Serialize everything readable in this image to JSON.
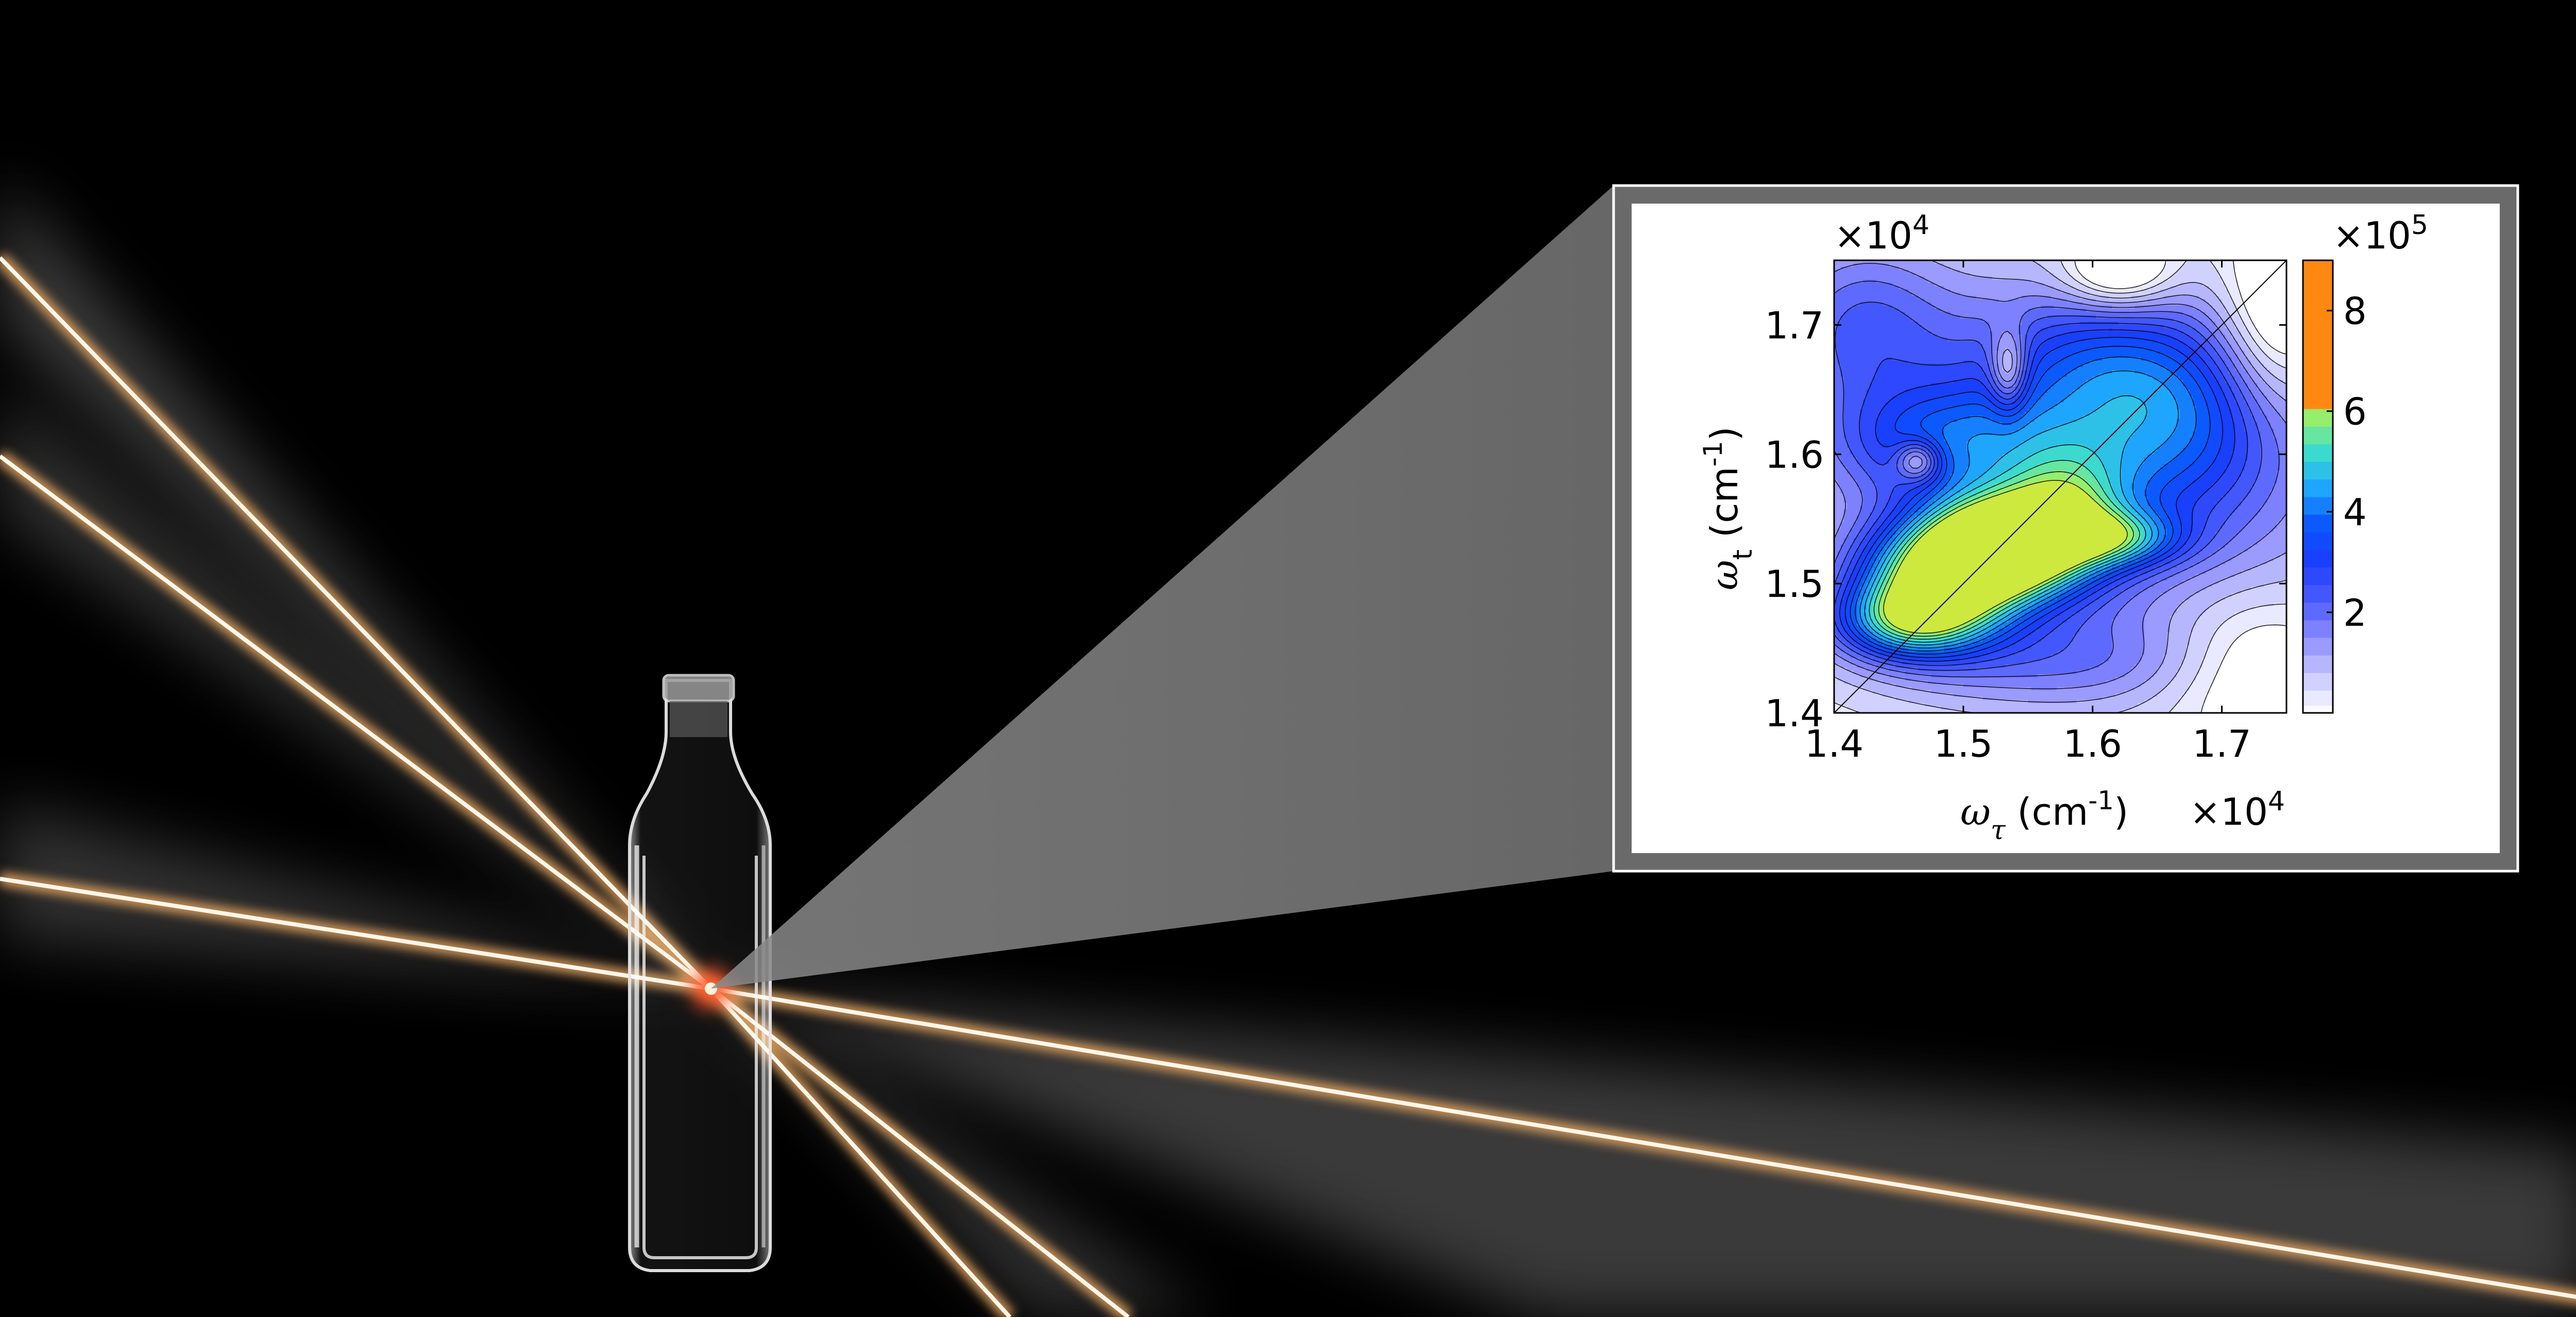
{
  "colors": {
    "background": "#000000",
    "beam_core": "#fff6e8",
    "beam_glow": "#e2a35e",
    "focal_spot": "#ff5a2a",
    "inset_frame": "#6a6a6a",
    "colormap": [
      "#ffffff",
      "#c8c8ff",
      "#8c8cff",
      "#4b5cff",
      "#1b3cff",
      "#0a57ff",
      "#1fa9ff",
      "#3fe0c8",
      "#a8f05a",
      "#f7e11e",
      "#ff8c10",
      "#e8160c",
      "#8a0000"
    ]
  },
  "icons": {
    "sample": "cuvette-icon"
  },
  "chart_data": {
    "type": "heatmap",
    "subtype": "filled-contour",
    "x_scale_label": "×10",
    "x_scale_exp": "4",
    "y_scale_label": "×10",
    "y_scale_exp": "4",
    "xlabel": {
      "symbol": "ω",
      "sub": "τ",
      "unit": "(cm",
      "exp": "-1",
      "close": ")"
    },
    "ylabel": {
      "symbol": "ω",
      "sub": "t",
      "unit": "(cm",
      "exp": "-1",
      "close": ")"
    },
    "xlim": [
      1.4,
      1.75
    ],
    "ylim": [
      1.4,
      1.75
    ],
    "xticks": [
      1.4,
      1.5,
      1.6,
      1.7
    ],
    "xtick_labels": [
      "1.4",
      "1.5",
      "1.6",
      "1.7"
    ],
    "yticks": [
      1.4,
      1.5,
      1.6,
      1.7
    ],
    "ytick_labels": [
      "1.4",
      "1.5",
      "1.6",
      "1.7"
    ],
    "diagonal_line": true,
    "colorbar": {
      "scale_label": "×10",
      "scale_exp": "5",
      "range": [
        0,
        9
      ],
      "ticks": [
        2,
        4,
        6,
        8
      ],
      "tick_labels": [
        "2",
        "4",
        "6",
        "8"
      ]
    },
    "peaks": [
      {
        "x": 1.53,
        "y": 1.53,
        "amp": 6.3,
        "sx": 0.045,
        "sy": 0.028
      },
      {
        "x": 1.48,
        "y": 1.5,
        "amp": 4.8,
        "sx": 0.045,
        "sy": 0.03
      },
      {
        "x": 1.455,
        "y": 1.47,
        "amp": 3.0,
        "sx": 0.04,
        "sy": 0.02
      },
      {
        "x": 1.62,
        "y": 1.535,
        "amp": 2.4,
        "sx": 0.035,
        "sy": 0.015
      },
      {
        "x": 1.58,
        "y": 1.56,
        "amp": 2.5,
        "sx": 0.035,
        "sy": 0.035
      },
      {
        "x": 1.49,
        "y": 1.61,
        "amp": 2.2,
        "sx": 0.06,
        "sy": 0.03
      },
      {
        "x": 1.66,
        "y": 1.62,
        "amp": 2.0,
        "sx": 0.06,
        "sy": 0.05
      },
      {
        "x": 1.6,
        "y": 1.67,
        "amp": 1.7,
        "sx": 0.07,
        "sy": 0.04
      },
      {
        "x": 1.42,
        "y": 1.7,
        "amp": 1.7,
        "sx": 0.05,
        "sy": 0.05
      },
      {
        "x": 1.57,
        "y": 1.44,
        "amp": 1.0,
        "sx": 0.1,
        "sy": 0.025
      },
      {
        "x": 1.6,
        "y": 1.58,
        "amp": 2.0,
        "sx": 0.16,
        "sy": 0.12
      }
    ],
    "dips": [
      {
        "x": 1.465,
        "y": 1.595,
        "amp": 2.2,
        "sx": 0.012,
        "sy": 0.011
      },
      {
        "x": 1.535,
        "y": 1.665,
        "amp": 2.0,
        "sx": 0.01,
        "sy": 0.022
      },
      {
        "x": 1.62,
        "y": 1.74,
        "amp": 1.8,
        "sx": 0.03,
        "sy": 0.02
      },
      {
        "x": 1.74,
        "y": 1.7,
        "amp": 1.5,
        "sx": 0.03,
        "sy": 0.05
      },
      {
        "x": 1.72,
        "y": 1.44,
        "amp": 1.2,
        "sx": 0.05,
        "sy": 0.04
      }
    ],
    "contour_levels": [
      0.15,
      0.45,
      0.8,
      1.15,
      1.5,
      1.85,
      2.2,
      2.55,
      2.9,
      3.25,
      3.6,
      3.95,
      4.3,
      4.65,
      5.0,
      5.35,
      5.7,
      6.05
    ]
  }
}
